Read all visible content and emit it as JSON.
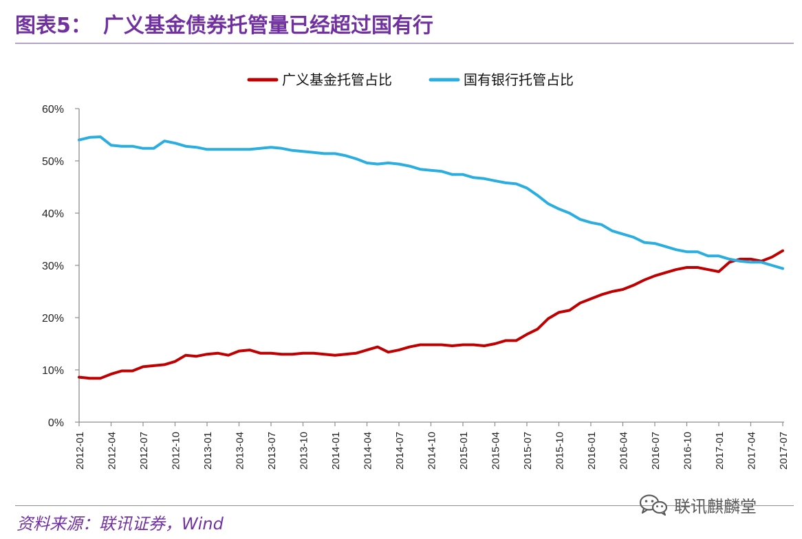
{
  "figure": {
    "label": "图表5：",
    "title": "广义基金债券托管量已经超过国有行",
    "source": "资料来源：联讯证券，Wind",
    "watermark": "联讯麒麟堂",
    "watermark_icon": "wechat-icon"
  },
  "chart_data": {
    "type": "line",
    "title": "",
    "xlabel": "",
    "ylabel": "",
    "ylim": [
      0,
      60
    ],
    "yticks": [
      "0%",
      "10%",
      "20%",
      "30%",
      "40%",
      "50%",
      "60%"
    ],
    "grid": false,
    "legend_position": "top-center",
    "x": [
      "2012-01",
      "2012-02",
      "2012-03",
      "2012-04",
      "2012-05",
      "2012-06",
      "2012-07",
      "2012-08",
      "2012-09",
      "2012-10",
      "2012-11",
      "2012-12",
      "2013-01",
      "2013-02",
      "2013-03",
      "2013-04",
      "2013-05",
      "2013-06",
      "2013-07",
      "2013-08",
      "2013-09",
      "2013-10",
      "2013-11",
      "2013-12",
      "2014-01",
      "2014-02",
      "2014-03",
      "2014-04",
      "2014-05",
      "2014-06",
      "2014-07",
      "2014-08",
      "2014-09",
      "2014-10",
      "2014-11",
      "2014-12",
      "2015-01",
      "2015-02",
      "2015-03",
      "2015-04",
      "2015-05",
      "2015-06",
      "2015-07",
      "2015-08",
      "2015-09",
      "2015-10",
      "2015-11",
      "2015-12",
      "2016-01",
      "2016-02",
      "2016-03",
      "2016-04",
      "2016-05",
      "2016-06",
      "2016-07",
      "2016-08",
      "2016-09",
      "2016-10",
      "2016-11",
      "2016-12",
      "2017-01",
      "2017-02",
      "2017-03",
      "2017-04",
      "2017-05",
      "2017-06",
      "2017-07"
    ],
    "tick_labels": [
      "2012-01",
      "2012-04",
      "2012-07",
      "2012-10",
      "2013-01",
      "2013-04",
      "2013-07",
      "2013-10",
      "2014-01",
      "2014-04",
      "2014-07",
      "2014-10",
      "2015-01",
      "2015-04",
      "2015-07",
      "2015-10",
      "2016-01",
      "2016-04",
      "2016-07",
      "2016-10",
      "2017-01",
      "2017-04",
      "2017-07"
    ],
    "series": [
      {
        "name": "广义基金托管占比",
        "color": "#c00000",
        "values": [
          8.6,
          8.4,
          8.4,
          9.2,
          9.8,
          9.8,
          10.6,
          10.8,
          11.0,
          11.6,
          12.8,
          12.6,
          13.0,
          13.2,
          12.8,
          13.6,
          13.8,
          13.2,
          13.2,
          13.0,
          13.0,
          13.2,
          13.2,
          13.0,
          12.8,
          13.0,
          13.2,
          13.8,
          14.4,
          13.4,
          13.8,
          14.4,
          14.8,
          14.8,
          14.8,
          14.6,
          14.8,
          14.8,
          14.6,
          15.0,
          15.6,
          15.6,
          16.8,
          17.8,
          19.8,
          21.0,
          21.4,
          22.8,
          23.6,
          24.4,
          25.0,
          25.4,
          26.2,
          27.2,
          28.0,
          28.6,
          29.2,
          29.6,
          29.6,
          29.2,
          28.8,
          30.6,
          31.2,
          31.2,
          30.8,
          31.6,
          32.8
        ]
      },
      {
        "name": "国有银行托管占比",
        "color": "#2aaee0",
        "values": [
          54.0,
          54.5,
          54.6,
          53.0,
          52.8,
          52.8,
          52.4,
          52.4,
          53.8,
          53.4,
          52.8,
          52.6,
          52.2,
          52.2,
          52.2,
          52.2,
          52.2,
          52.4,
          52.6,
          52.4,
          52.0,
          51.8,
          51.6,
          51.4,
          51.4,
          51.0,
          50.4,
          49.6,
          49.4,
          49.6,
          49.4,
          49.0,
          48.4,
          48.2,
          48.0,
          47.4,
          47.4,
          46.8,
          46.6,
          46.2,
          45.8,
          45.6,
          44.8,
          43.4,
          41.8,
          40.8,
          40.0,
          38.8,
          38.2,
          37.8,
          36.6,
          36.0,
          35.4,
          34.4,
          34.2,
          33.6,
          33.0,
          32.6,
          32.6,
          31.8,
          31.8,
          31.2,
          30.8,
          30.6,
          30.6,
          30.0,
          29.4
        ]
      }
    ]
  }
}
